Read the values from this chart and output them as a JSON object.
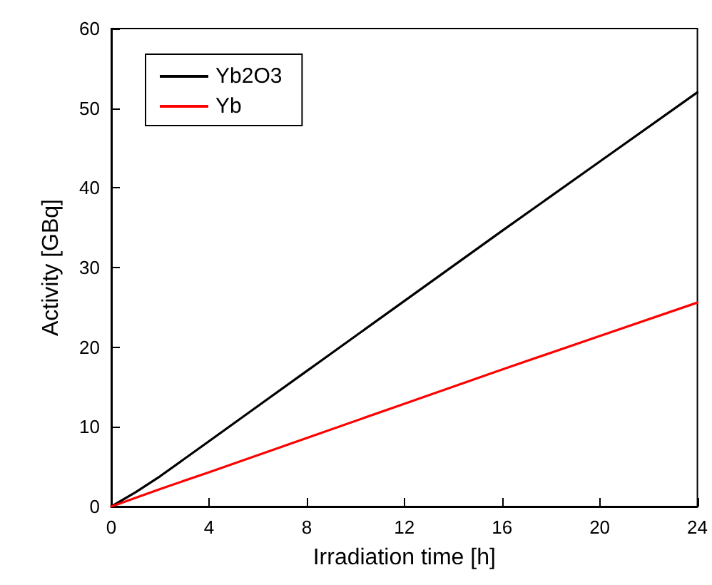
{
  "chart_data": {
    "type": "line",
    "xlabel": "Irradiation time [h]",
    "ylabel": "Activity [GBq]",
    "xlim": [
      0,
      24
    ],
    "xticks": [
      0,
      4,
      8,
      12,
      16,
      20,
      24
    ],
    "ylim": [
      0,
      60
    ],
    "yticks": [
      0,
      10,
      20,
      30,
      40,
      50,
      60
    ],
    "legend": "top left",
    "grid": false,
    "marker": "none",
    "line_style": "solid",
    "series": [
      {
        "name": "Yb2O3",
        "color": "#000000",
        "x": [
          0,
          1,
          2,
          4,
          6,
          8,
          12,
          16,
          20,
          24
        ],
        "values": [
          0,
          1.8,
          3.8,
          8.2,
          12.6,
          17,
          25.8,
          34.6,
          43.3,
          52
        ]
      },
      {
        "name": "Yb",
        "color": "#ff0000",
        "x": [
          0,
          2,
          4,
          8,
          12,
          16,
          20,
          24
        ],
        "values": [
          0,
          2.2,
          4.3,
          8.6,
          12.9,
          17.2,
          21.4,
          25.6
        ]
      }
    ]
  }
}
